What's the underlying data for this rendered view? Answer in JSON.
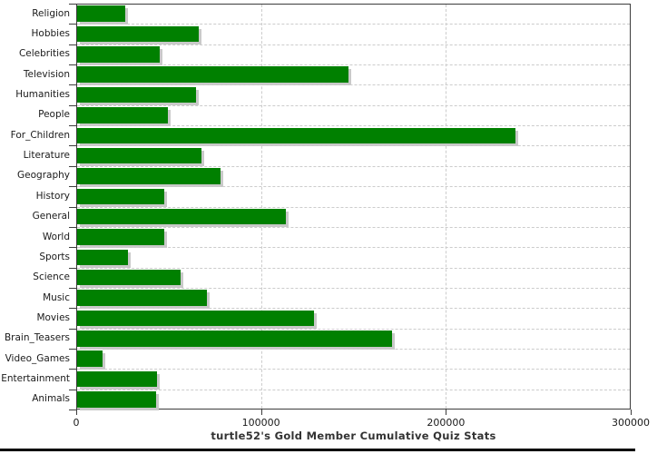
{
  "title": "turtle52's Gold Member Cumulative Quiz Stats",
  "colors": {
    "bar": "#008000",
    "bar_shadow": "#c9c9c9",
    "grid": "#cccccc",
    "axis_border": "#3c3c3c",
    "label_text": "#1a1a1a",
    "title_text": "#333333",
    "bottom_strip": "#000000"
  },
  "chart_data": {
    "type": "bar",
    "orientation": "horizontal",
    "title": "turtle52's Gold Member Cumulative Quiz Stats",
    "xlabel": "",
    "ylabel": "",
    "xlim": [
      0,
      300000
    ],
    "x_ticks": [
      {
        "value": 0,
        "label": "0"
      },
      {
        "value": 100000,
        "label": "100000"
      },
      {
        "value": 200000,
        "label": "200000"
      },
      {
        "value": 300000,
        "label": "300000"
      }
    ],
    "grid": true,
    "legend": "none",
    "categories": [
      "Religion",
      "Hobbies",
      "Celebrities",
      "Television",
      "Humanities",
      "People",
      "For_Children",
      "Literature",
      "Geography",
      "History",
      "General",
      "World",
      "Sports",
      "Science",
      "Music",
      "Movies",
      "Brain_Teasers",
      "Video_Games",
      "Entertainment",
      "Animals"
    ],
    "values": [
      26000,
      65600,
      44700,
      147000,
      64200,
      49300,
      237000,
      67300,
      77400,
      47200,
      113000,
      47300,
      27700,
      56200,
      70400,
      128000,
      170400,
      13900,
      43400,
      42900
    ]
  }
}
